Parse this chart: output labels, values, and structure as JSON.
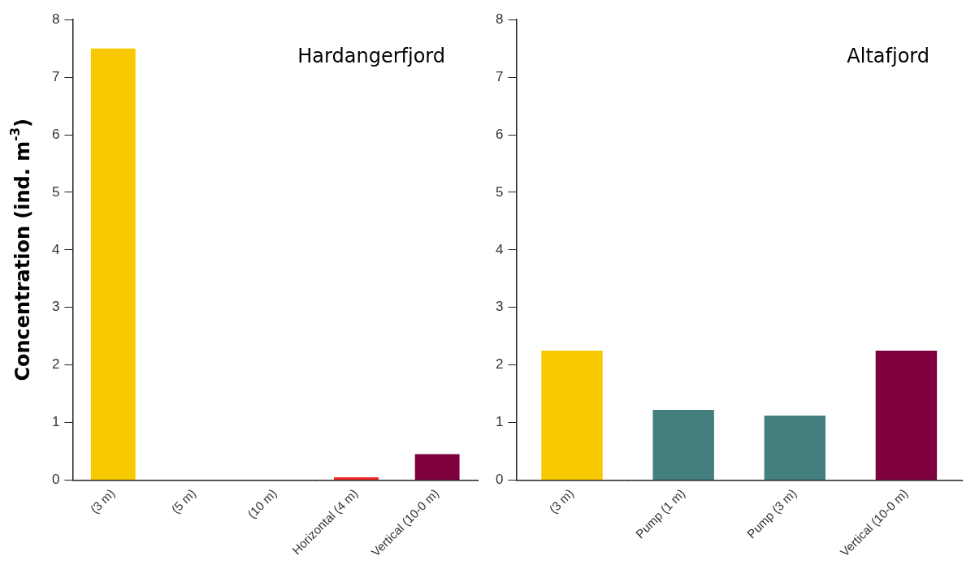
{
  "chart_data": [
    {
      "type": "bar",
      "title": "Hardangerfjord",
      "ylabel": "Concentration (ind. m$^{-3}$)",
      "categories": [
        "(3 m)",
        "(5 m)",
        "(10 m)",
        "Horizontal (4 m)",
        "Vertical (10-0 m)"
      ],
      "values": [
        7.5,
        0,
        0,
        0.05,
        0.45
      ],
      "colors": [
        "#f9c900",
        "#f9c900",
        "#f9c900",
        "#ee2a2a",
        "#7f003f"
      ],
      "ylim": [
        0,
        8
      ],
      "yticks": [
        0,
        1,
        2,
        3,
        4,
        5,
        6,
        7,
        8
      ]
    },
    {
      "type": "bar",
      "title": "Altafjord",
      "categories": [
        "(3 m)",
        "Pump (1 m)",
        "Pump (3 m)",
        "Vertical (10-0 m)"
      ],
      "values": [
        2.25,
        1.22,
        1.12,
        2.25
      ],
      "colors": [
        "#f9c900",
        "#437f7f",
        "#437f7f",
        "#7f003f"
      ],
      "ylim": [
        0,
        8
      ],
      "yticks": [
        0,
        1,
        2,
        3,
        4,
        5,
        6,
        7,
        8
      ]
    }
  ]
}
